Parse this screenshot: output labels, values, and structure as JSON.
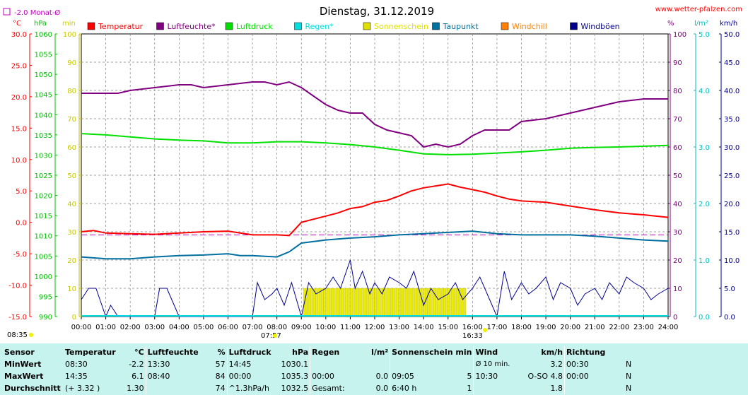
{
  "header": {
    "title": "Dienstag, 31.12.2019",
    "site": "www.wetter-pfalzen.com",
    "monthly_avg_label": "-2.0 Monat-Ø",
    "sunrise": "07:57",
    "sunset": "16:33",
    "left_time": "08:35"
  },
  "axes": {
    "temp_unit": "°C",
    "hpa_unit": "hPa",
    "min_unit": "min",
    "pct_unit": "%",
    "lm2_unit": "l/m²",
    "kmh_unit": "km/h",
    "temp_ticks": [
      "30.0",
      "25.0",
      "20.0",
      "15.0",
      "10.0",
      "5.0",
      "0.0",
      "-5.0",
      "-10.0",
      "-15.0"
    ],
    "hpa_ticks": [
      "1060",
      "1055",
      "1050",
      "1045",
      "1040",
      "1035",
      "1030",
      "1025",
      "1020",
      "1015",
      "1010",
      "1005",
      "1000",
      "995",
      "990"
    ],
    "min_ticks": [
      "100",
      "90",
      "80",
      "70",
      "60",
      "50",
      "40",
      "30",
      "20",
      "10",
      "0"
    ],
    "pct_ticks": [
      "100",
      "90",
      "80",
      "70",
      "60",
      "50",
      "40",
      "30",
      "20",
      "10",
      "0"
    ],
    "lm2_ticks": [
      "5.0",
      "4.0",
      "3.0",
      "2.0",
      "1.0",
      "0.0"
    ],
    "kmh_ticks": [
      "50.0",
      "45.0",
      "40.0",
      "35.0",
      "30.0",
      "25.0",
      "20.0",
      "15.0",
      "10.0",
      "5.0",
      "0.0"
    ],
    "time_ticks": [
      "00:00",
      "01:00",
      "02:00",
      "03:00",
      "04:00",
      "05:00",
      "06:00",
      "07:00",
      "08:00",
      "09:00",
      "10:00",
      "11:00",
      "12:00",
      "13:00",
      "14:00",
      "15:00",
      "16:00",
      "17:00",
      "18:00",
      "19:00",
      "20:00",
      "21:00",
      "22:00",
      "23:00",
      "24:00"
    ]
  },
  "legend": [
    {
      "label": "Temperatur",
      "color": "#ff0000"
    },
    {
      "label": "Luftfeuchte*",
      "color": "#800080"
    },
    {
      "label": "Luftdruck",
      "color": "#00e000"
    },
    {
      "label": "Regen*",
      "color": "#00e0e0"
    },
    {
      "label": "Sonnenschein",
      "color": "#e0e000"
    },
    {
      "label": "Taupunkt",
      "color": "#0070a0"
    },
    {
      "label": "Windchill",
      "color": "#ff8000"
    },
    {
      "label": "Windböen",
      "color": "#000090"
    }
  ],
  "colors": {
    "temperature": "#ff0000",
    "humidity": "#800080",
    "pressure": "#00e000",
    "dewpoint": "#0070a0",
    "wind": "#000090",
    "sunshine": "#f0f000",
    "rain": "#00e0e0",
    "monthavg": "#c000c0",
    "grid": "#808080",
    "stats_bg": "#c7f3ef"
  },
  "chart_data": {
    "type": "line",
    "title": "Dienstag, 31.12.2019",
    "x_unit": "hours",
    "xlim": [
      0,
      24
    ],
    "series": [
      {
        "name": "Temperatur",
        "axis": "°C",
        "ylim": [
          -15,
          30
        ],
        "x": [
          0,
          0.5,
          1,
          2,
          3,
          4,
          5,
          6,
          7,
          8,
          8.5,
          9,
          9.5,
          10,
          10.5,
          11,
          11.5,
          12,
          12.5,
          13,
          13.5,
          14,
          14.5,
          15,
          15.5,
          16,
          16.5,
          17,
          17.5,
          18,
          19,
          20,
          21,
          22,
          23,
          24
        ],
        "y": [
          -1.5,
          -1.3,
          -1.7,
          -1.8,
          -1.9,
          -1.7,
          -1.5,
          -1.4,
          -2.0,
          -2.0,
          -2.1,
          0.0,
          0.5,
          1.0,
          1.5,
          2.2,
          2.5,
          3.2,
          3.5,
          4.2,
          5.0,
          5.5,
          5.8,
          6.1,
          5.6,
          5.2,
          4.8,
          4.2,
          3.7,
          3.4,
          3.2,
          2.6,
          2.0,
          1.5,
          1.2,
          0.8
        ]
      },
      {
        "name": "Luftfeuchte*",
        "axis": "%",
        "ylim": [
          0,
          100
        ],
        "x": [
          0,
          1,
          1.5,
          2,
          3,
          4,
          4.5,
          5,
          6,
          7,
          7.5,
          8,
          8.5,
          9,
          9.5,
          10,
          10.5,
          11,
          11.5,
          12,
          12.5,
          13,
          13.5,
          14,
          14.5,
          15,
          15.5,
          16,
          16.5,
          17,
          17.5,
          18,
          19,
          20,
          21,
          22,
          23,
          24
        ],
        "y": [
          79,
          79,
          79,
          80,
          81,
          82,
          82,
          81,
          82,
          83,
          83,
          82,
          83,
          81,
          78,
          75,
          73,
          72,
          72,
          68,
          66,
          65,
          64,
          60,
          61,
          60,
          61,
          64,
          66,
          66,
          66,
          69,
          70,
          72,
          74,
          76,
          77,
          77
        ]
      },
      {
        "name": "Luftdruck",
        "axis": "hPa",
        "ylim": [
          990,
          1060
        ],
        "x": [
          0,
          1,
          2,
          3,
          4,
          5,
          6,
          7,
          8,
          9,
          10,
          11,
          12,
          13,
          14,
          15,
          16,
          17,
          18,
          19,
          20,
          21,
          22,
          23,
          24
        ],
        "y": [
          1035.3,
          1035.0,
          1034.5,
          1034.0,
          1033.7,
          1033.5,
          1033.0,
          1033.0,
          1033.3,
          1033.3,
          1033.0,
          1032.6,
          1032.0,
          1031.2,
          1030.3,
          1030.1,
          1030.2,
          1030.5,
          1030.8,
          1031.2,
          1031.7,
          1031.9,
          1032.0,
          1032.2,
          1032.4
        ]
      },
      {
        "name": "Taupunkt",
        "axis": "°C",
        "ylim": [
          -15,
          30
        ],
        "x": [
          0,
          1,
          2,
          3,
          4,
          5,
          6,
          6.5,
          7,
          8,
          8.5,
          9,
          10,
          11,
          12,
          13,
          14,
          15,
          16,
          17,
          18,
          19,
          20,
          21,
          22,
          23,
          24
        ],
        "y": [
          -5.5,
          -5.8,
          -5.8,
          -5.5,
          -5.3,
          -5.2,
          -5.0,
          -5.3,
          -5.3,
          -5.5,
          -4.7,
          -3.3,
          -2.8,
          -2.5,
          -2.3,
          -2.0,
          -1.8,
          -1.6,
          -1.4,
          -1.8,
          -2.0,
          -2.0,
          -2.0,
          -2.2,
          -2.5,
          -2.8,
          -3.0
        ]
      },
      {
        "name": "Windböen",
        "axis": "km/h",
        "ylim": [
          0,
          50
        ],
        "x": [
          0,
          0.3,
          0.6,
          1,
          1.2,
          1.5,
          2,
          3,
          3.2,
          3.5,
          4,
          5,
          6,
          7,
          7.2,
          7.5,
          7.8,
          8,
          8.3,
          8.6,
          9,
          9.3,
          9.6,
          10,
          10.3,
          10.6,
          11,
          11.2,
          11.5,
          11.8,
          12,
          12.3,
          12.6,
          13,
          13.3,
          13.6,
          14,
          14.3,
          14.6,
          15,
          15.3,
          15.6,
          16,
          16.3,
          16.6,
          17,
          17.3,
          17.6,
          18,
          18.3,
          18.6,
          19,
          19.3,
          19.6,
          20,
          20.3,
          20.6,
          21,
          21.3,
          21.6,
          22,
          22.3,
          22.6,
          23,
          23.3,
          23.6,
          24
        ],
        "y": [
          3,
          5,
          5,
          0,
          2,
          0,
          0,
          0,
          5,
          5,
          0,
          0,
          0,
          0,
          6,
          3,
          4,
          5,
          2,
          6,
          0,
          6,
          4,
          5,
          7,
          5,
          10,
          5,
          8,
          4,
          6,
          4,
          7,
          6,
          5,
          8,
          2,
          5,
          3,
          4,
          6,
          3,
          5,
          7,
          4,
          0,
          8,
          3,
          6,
          4,
          5,
          7,
          3,
          6,
          5,
          2,
          4,
          5,
          3,
          6,
          4,
          7,
          6,
          5,
          3,
          4,
          5
        ]
      }
    ],
    "sunshine_bars": {
      "name": "Sonnenschein",
      "x_start": 9.08,
      "x_end": 15.67,
      "value_min": 10
    },
    "monthly_avg_temperature": -2.0
  },
  "stats": {
    "headers": {
      "sensor": "Sensor",
      "temp": "Temperatur",
      "temp_u": "°C",
      "hum": "Luftfeuchte",
      "hum_u": "%",
      "press": "Luftdruck",
      "press_u": "hPa",
      "rain": "Regen",
      "rain_u": "l/m²",
      "sun": "Sonnenschein min",
      "wind": "Wind",
      "wind_u": "km/h",
      "dir": "Richtung"
    },
    "rows": [
      {
        "label": "MinWert",
        "t_time": "08:30",
        "t_val": "-2.2",
        "h_time": "13:30",
        "h_val": "57",
        "p_time": "14:45",
        "p_val": "1030.1",
        "r_time": "",
        "r_val": "",
        "s_time": "",
        "s_val": "",
        "w_label": "Ø 10 min.",
        "w_val": "3.2",
        "d_time": "00:30",
        "d_val": "N"
      },
      {
        "label": "MaxWert",
        "t_time": "14:35",
        "t_val": "6.1",
        "h_time": "08:40",
        "h_val": "84",
        "p_time": "00:00",
        "p_val": "1035.3",
        "r_time": "00:00",
        "r_val": "0.0",
        "s_time": "09:05",
        "s_val": "5",
        "w_label": "10:30",
        "w_dir": "O-SO",
        "w_val": "4.8",
        "d_time": "00:00",
        "d_val": "N"
      },
      {
        "label": "Durchschnitt",
        "t_time": "(+ 3.32 )",
        "t_val": "1.30",
        "h_time": "",
        "h_val": "74",
        "p_time": "^1.3hPa/h",
        "p_val": "1032.5",
        "r_time": "Gesamt:",
        "r_val": "0.0",
        "s_time": "6:40 h",
        "s_val": "1",
        "w_label": "",
        "w_val": "1.8",
        "d_time": "",
        "d_val": "N"
      }
    ]
  }
}
